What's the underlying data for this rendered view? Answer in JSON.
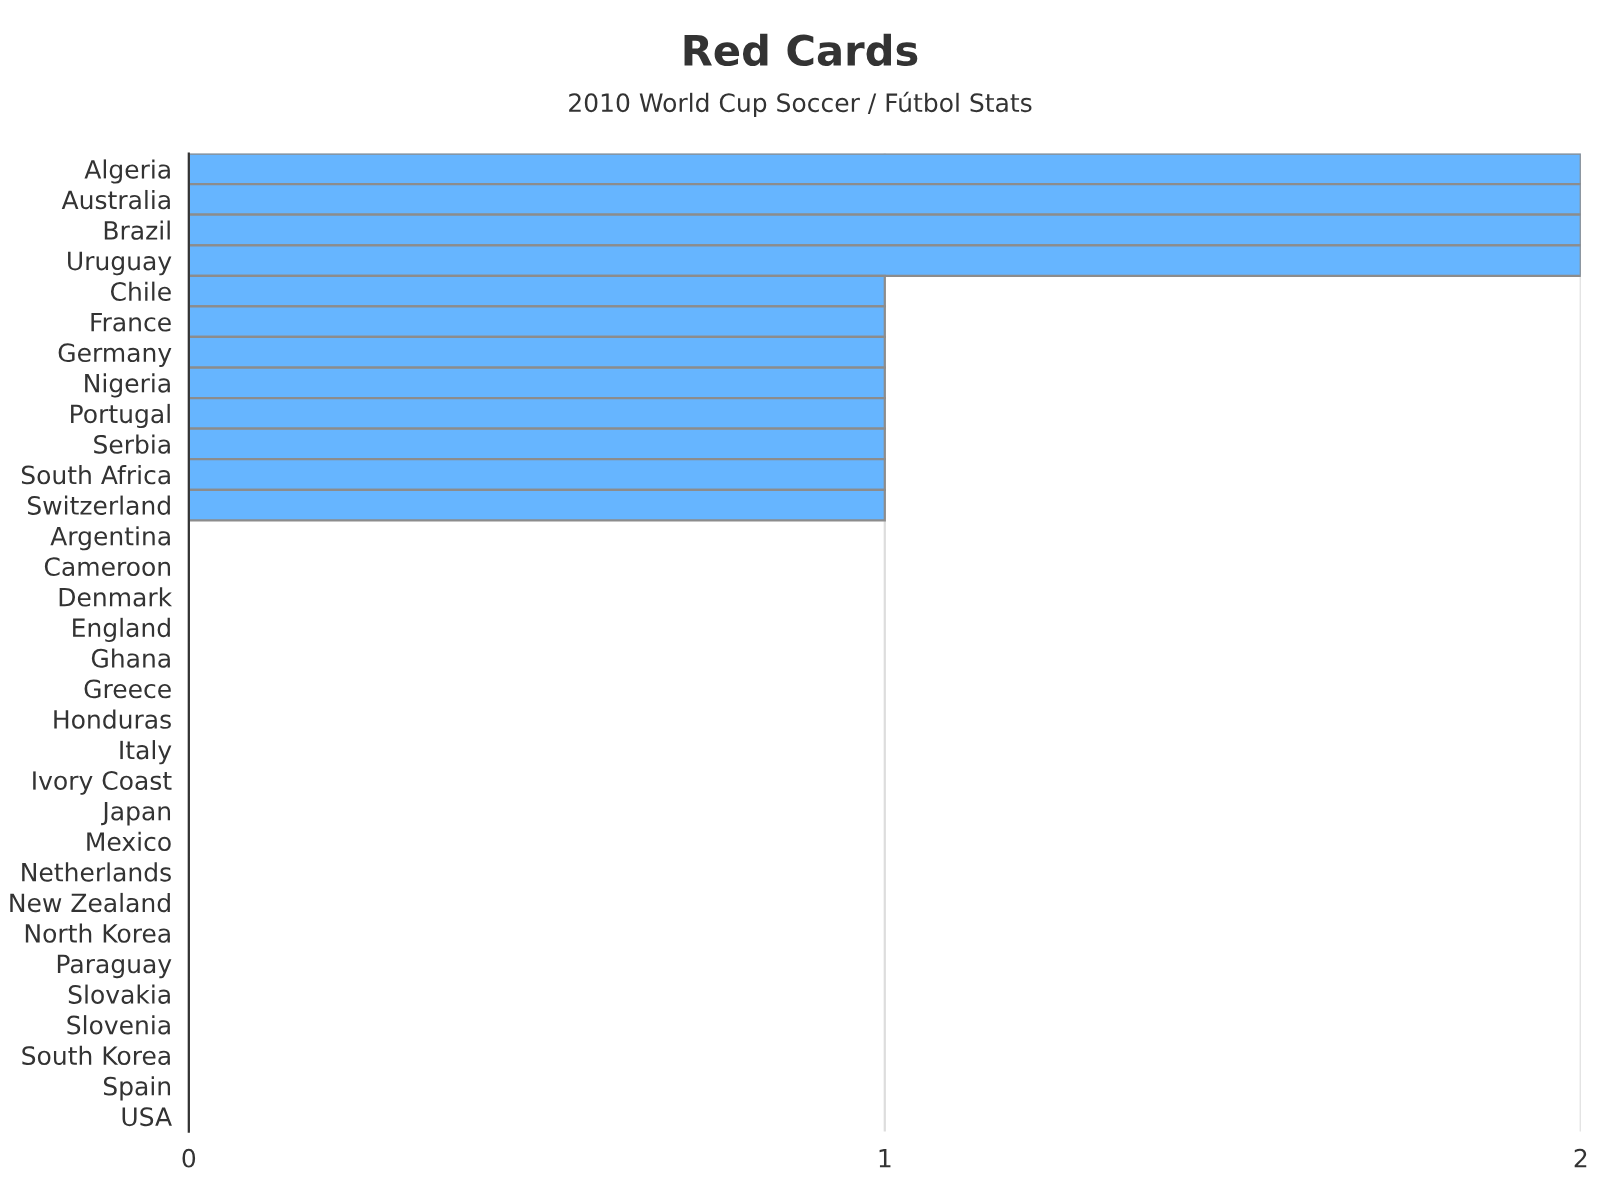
{
  "chart_data": {
    "type": "bar",
    "orientation": "horizontal",
    "title": "Red Cards",
    "subtitle": "2010 World Cup Soccer / Fútbol Stats",
    "categories": [
      "Algeria",
      "Australia",
      "Brazil",
      "Uruguay",
      "Chile",
      "France",
      "Germany",
      "Nigeria",
      "Portugal",
      "Serbia",
      "South Africa",
      "Switzerland",
      "Argentina",
      "Cameroon",
      "Denmark",
      "England",
      "Ghana",
      "Greece",
      "Honduras",
      "Italy",
      "Ivory Coast",
      "Japan",
      "Mexico",
      "Netherlands",
      "New Zealand",
      "North Korea",
      "Paraguay",
      "Slovakia",
      "Slovenia",
      "South Korea",
      "Spain",
      "USA"
    ],
    "values": [
      2,
      2,
      2,
      2,
      1,
      1,
      1,
      1,
      1,
      1,
      1,
      1,
      0,
      0,
      0,
      0,
      0,
      0,
      0,
      0,
      0,
      0,
      0,
      0,
      0,
      0,
      0,
      0,
      0,
      0,
      0,
      0
    ],
    "color": "#66b5ff",
    "xlim": [
      0,
      2
    ],
    "xticks": [
      0,
      1,
      2
    ],
    "grid": "x",
    "legend": false
  }
}
